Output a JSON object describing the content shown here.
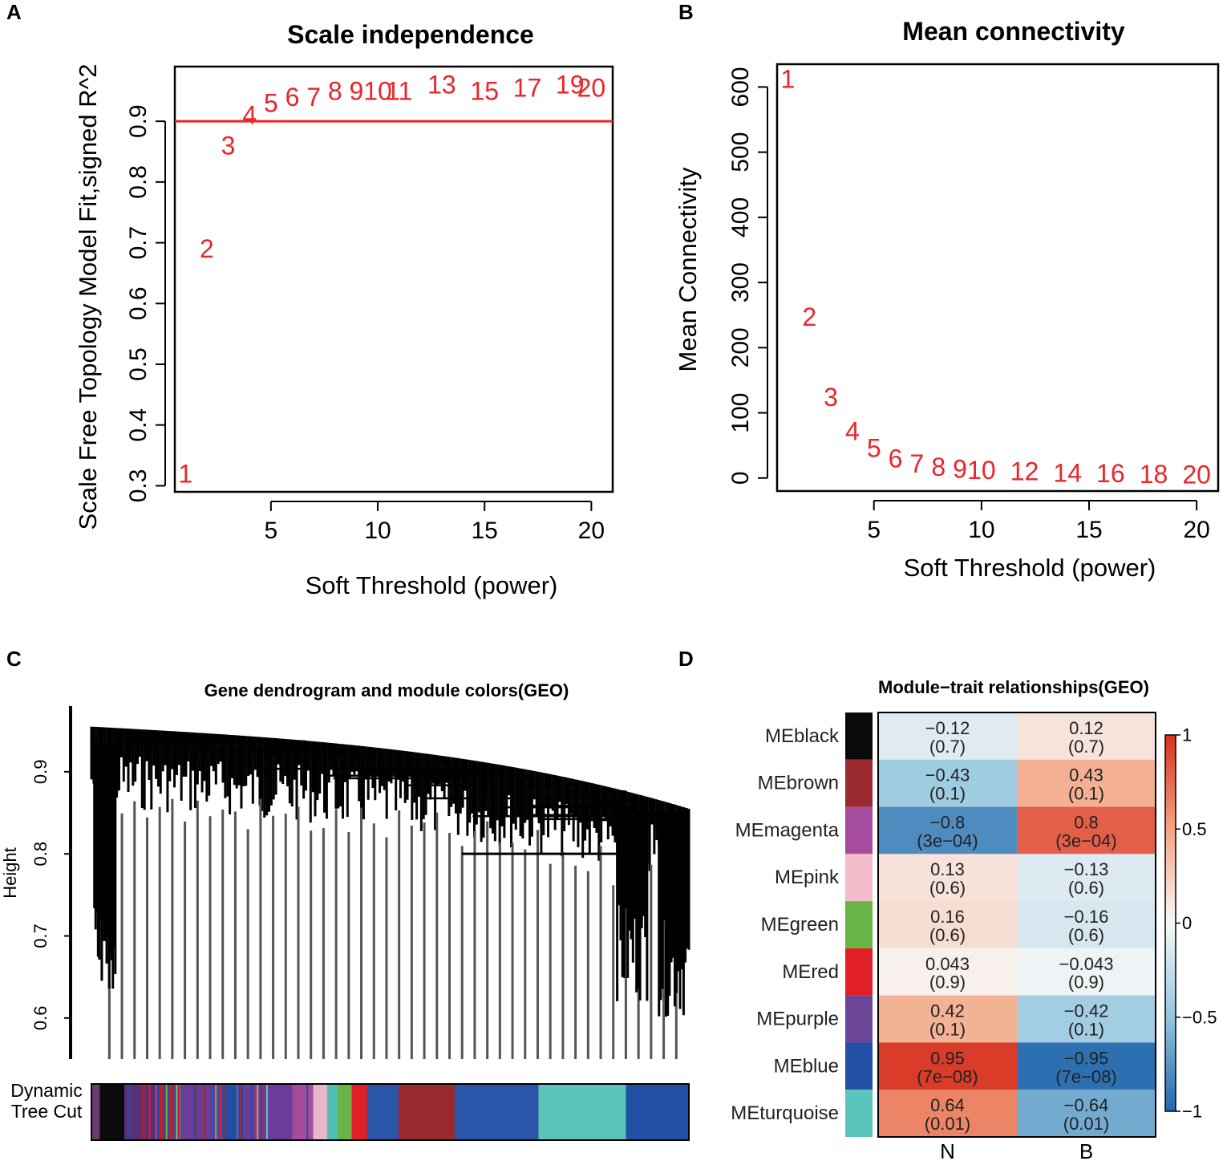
{
  "panels": {
    "a": "A",
    "b": "B",
    "c": "C",
    "d": "D"
  },
  "chart_data": [
    {
      "type": "scatter",
      "title": "Scale independence",
      "xlabel": "Soft Threshold (power)",
      "ylabel": "Scale Free Topology Model Fit,signed R^2",
      "xlim": [
        0.5,
        21
      ],
      "ylim": [
        0.29,
        0.99
      ],
      "xticks": [
        5,
        10,
        15,
        20
      ],
      "yticks": [
        0.3,
        0.4,
        0.5,
        0.6,
        0.7,
        0.8,
        0.9
      ],
      "hline": 0.9,
      "x": [
        1,
        2,
        3,
        4,
        5,
        6,
        7,
        8,
        9,
        10,
        11,
        13,
        15,
        17,
        19,
        20
      ],
      "y": [
        0.32,
        0.69,
        0.86,
        0.91,
        0.93,
        0.94,
        0.94,
        0.95,
        0.95,
        0.95,
        0.95,
        0.96,
        0.95,
        0.955,
        0.96,
        0.955
      ],
      "labels": [
        "1",
        "2",
        "3",
        "4",
        "5",
        "6",
        "7",
        "8",
        "9",
        "10",
        "11",
        "13",
        "15",
        "17",
        "19",
        "20"
      ]
    },
    {
      "type": "scatter",
      "title": "Mean connectivity",
      "xlabel": "Soft Threshold (power)",
      "ylabel": "Mean Connectivity",
      "xlim": [
        0.5,
        21
      ],
      "ylim": [
        -20,
        635
      ],
      "xticks": [
        5,
        10,
        15,
        20
      ],
      "yticks": [
        0,
        100,
        200,
        300,
        400,
        500,
        600
      ],
      "x": [
        1,
        2,
        3,
        4,
        5,
        6,
        7,
        8,
        9,
        10,
        12,
        14,
        16,
        18,
        20
      ],
      "y": [
        612,
        247,
        124,
        72,
        46,
        30,
        22,
        17,
        14,
        12,
        10,
        8,
        7,
        6,
        5
      ],
      "labels": [
        "1",
        "2",
        "3",
        "4",
        "5",
        "6",
        "7",
        "8",
        "9",
        "10",
        "12",
        "14",
        "16",
        "18",
        "20"
      ]
    },
    {
      "type": "dendrogram",
      "title": "Gene dendrogram and module colors(GEO)",
      "ylabel": "Height",
      "ylim": [
        0.55,
        0.98
      ],
      "yticks": [
        0.6,
        0.7,
        0.8,
        0.9
      ],
      "color_bar_label": [
        "Dynamic",
        "Tree Cut"
      ],
      "modules": [
        {
          "color": "#6b3a6e",
          "fraction": 0.012
        },
        {
          "color": "#0a0a0a",
          "fraction": 0.035
        },
        {
          "color": "#5a2e7a",
          "fraction": 0.05
        },
        {
          "color": "#c0202b",
          "fraction": 0.03
        },
        {
          "color": "#6a3d9a",
          "fraction": 0.06
        },
        {
          "color": "#1f4fa3",
          "fraction": 0.03
        },
        {
          "color": "#6a3d9a",
          "fraction": 0.07
        },
        {
          "color": "#a54c9f",
          "fraction": 0.03
        },
        {
          "color": "#e4b8c8",
          "fraction": 0.02
        },
        {
          "color": "#4fbfb5",
          "fraction": 0.015
        },
        {
          "color": "#6ab344",
          "fraction": 0.02
        },
        {
          "color": "#e11f26",
          "fraction": 0.022
        },
        {
          "color": "#2a55a8",
          "fraction": 0.045
        },
        {
          "color": "#9a2a2e",
          "fraction": 0.08
        },
        {
          "color": "#2a55a8",
          "fraction": 0.12
        },
        {
          "color": "#5bc4bb",
          "fraction": 0.125
        },
        {
          "color": "#2250a6",
          "fraction": 0.09
        }
      ]
    },
    {
      "type": "heatmap",
      "title": "Module−trait relationships(GEO)",
      "columns": [
        "N",
        "B"
      ],
      "rows": [
        {
          "name": "MEblack",
          "color": "#0a0a0a",
          "values": [
            -0.12,
            0.12
          ],
          "cells": [
            [
              "−0.12",
              "(0.7)"
            ],
            [
              "0.12",
              "(0.7)"
            ]
          ]
        },
        {
          "name": "MEbrown",
          "color": "#9a2a2e",
          "values": [
            -0.43,
            0.43
          ],
          "cells": [
            [
              "−0.43",
              "(0.1)"
            ],
            [
              "0.43",
              "(0.1)"
            ]
          ]
        },
        {
          "name": "MEmagenta",
          "color": "#a54c9f",
          "values": [
            -0.8,
            0.8
          ],
          "cells": [
            [
              "−0.8",
              "(3e−04)"
            ],
            [
              "0.8",
              "(3e−04)"
            ]
          ]
        },
        {
          "name": "MEpink",
          "color": "#f2bccb",
          "values": [
            0.13,
            -0.13
          ],
          "cells": [
            [
              "0.13",
              "(0.6)"
            ],
            [
              "−0.13",
              "(0.6)"
            ]
          ]
        },
        {
          "name": "MEgreen",
          "color": "#66b545",
          "values": [
            0.16,
            -0.16
          ],
          "cells": [
            [
              "0.16",
              "(0.6)"
            ],
            [
              "−0.16",
              "(0.6)"
            ]
          ]
        },
        {
          "name": "MEred",
          "color": "#e11f26",
          "values": [
            0.043,
            -0.043
          ],
          "cells": [
            [
              "0.043",
              "(0.9)"
            ],
            [
              "−0.043",
              "(0.9)"
            ]
          ]
        },
        {
          "name": "MEpurple",
          "color": "#6b4598",
          "values": [
            0.42,
            -0.42
          ],
          "cells": [
            [
              "0.42",
              "(0.1)"
            ],
            [
              "−0.42",
              "(0.1)"
            ]
          ]
        },
        {
          "name": "MEblue",
          "color": "#2250a6",
          "values": [
            0.95,
            -0.95
          ],
          "cells": [
            [
              "0.95",
              "(7e−08)"
            ],
            [
              "−0.95",
              "(7e−08)"
            ]
          ]
        },
        {
          "name": "MEturquoise",
          "color": "#5bc4bb",
          "values": [
            0.64,
            -0.64
          ],
          "cells": [
            [
              "0.64",
              "(0.01)"
            ],
            [
              "−0.64",
              "(0.01)"
            ]
          ]
        }
      ],
      "colorbar": {
        "range": [
          -1,
          1
        ],
        "ticks": [
          "1",
          "0.5",
          "0",
          "−0.5",
          "−1"
        ],
        "tick_values": [
          1,
          0.5,
          0,
          -0.5,
          -1
        ]
      }
    }
  ]
}
